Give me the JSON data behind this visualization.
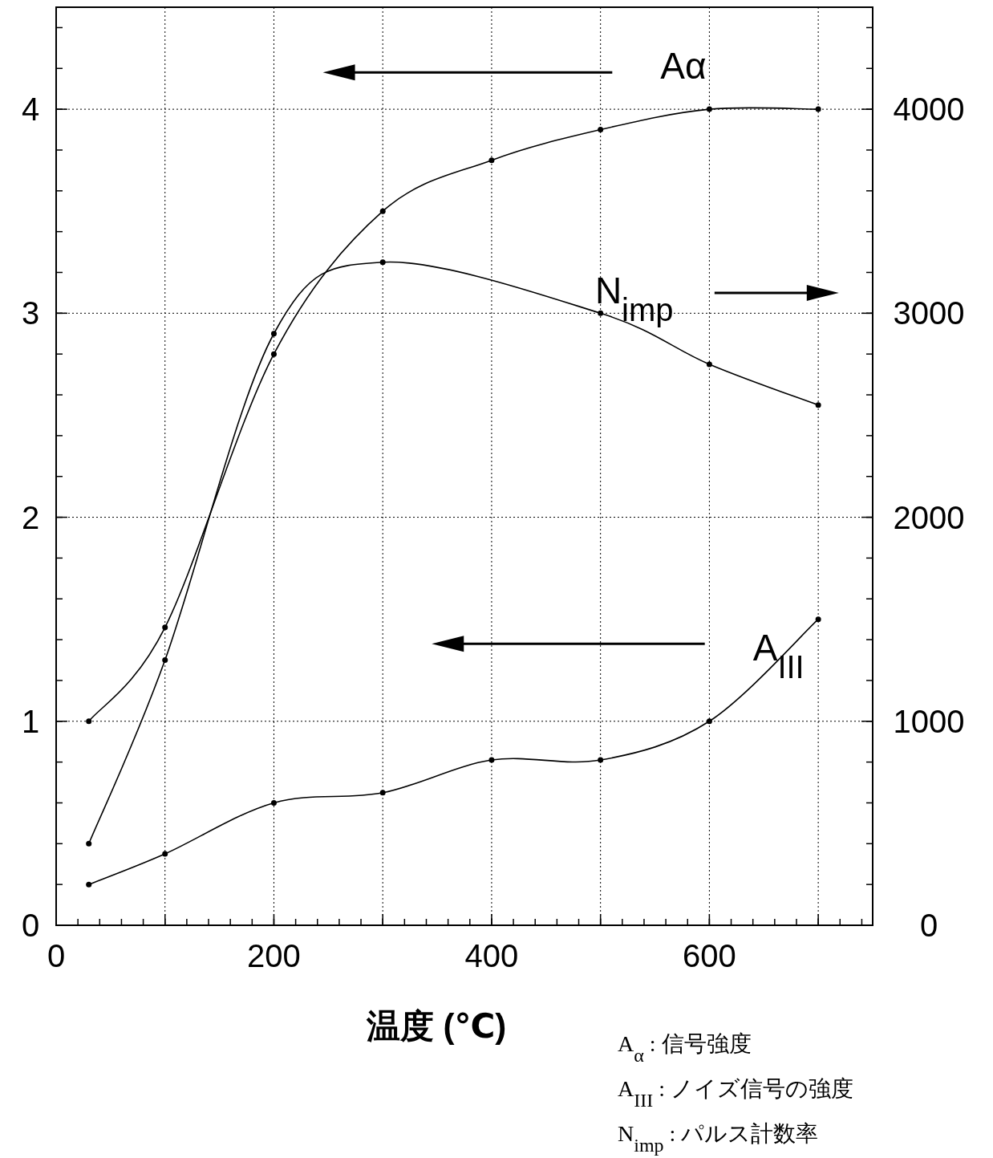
{
  "chart_data": {
    "type": "line",
    "xlabel": "温度 (℃)",
    "xlim": [
      0,
      750
    ],
    "xticks": [
      0,
      {
        "value": 100,
        "label": null
      },
      200,
      {
        "value": 300,
        "label": null
      },
      400,
      {
        "value": 500,
        "label": null
      },
      600,
      {
        "value": 700,
        "label": null
      }
    ],
    "ylim": [
      0,
      4.5
    ],
    "yticks": [
      0,
      1,
      2,
      3,
      4
    ],
    "y2lim": [
      0,
      4500
    ],
    "y2ticks": [
      0,
      1000,
      2000,
      3000,
      4000
    ],
    "grid": true,
    "marker": "circle",
    "line_style": "solid",
    "series": [
      {
        "name": "Aα",
        "color": "#000000",
        "x": [
          30,
          100,
          200,
          300,
          400,
          500,
          600,
          700
        ],
        "values": [
          1.0,
          1.46,
          2.8,
          3.5,
          3.75,
          3.9,
          4.0,
          4.0
        ]
      },
      {
        "name": "N$_{imp}$",
        "color": "#000000",
        "axis": "y2",
        "x": [
          30,
          100,
          200,
          300,
          500,
          600,
          700
        ],
        "values": [
          400,
          1300,
          2900,
          3250,
          3000,
          2750,
          2550
        ]
      },
      {
        "name": "A$_{III}$",
        "color": "#000000",
        "x": [
          30,
          100,
          200,
          300,
          400,
          500,
          600,
          700
        ],
        "values": [
          0.2,
          0.35,
          0.6,
          0.65,
          0.81,
          0.81,
          1.0,
          1.5
        ]
      }
    ],
    "annotations": [
      "A$_{α}$ : 信号強度",
      "A$_{III}$ : ノイズ信号の強度",
      "N$_{imp}$ : パルス計数率"
    ]
  }
}
